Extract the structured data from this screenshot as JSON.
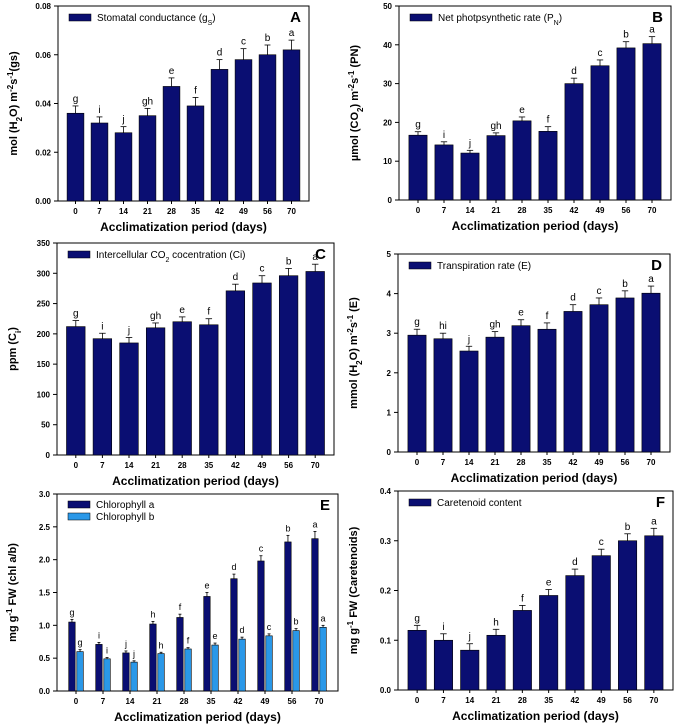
{
  "chart_data": [
    {
      "type": "bar",
      "panel": "A",
      "legend": "Stomatal conductance (gs)",
      "legend_main": "Stomatal conductance (g",
      "legend_sub": "S",
      "legend_tail": ")",
      "ylabel": "mol (H2O) m-2s-1(gs)",
      "ylabel_parts": [
        [
          "mol (H",
          "n"
        ],
        [
          "2",
          "sub"
        ],
        [
          "O) m",
          "n"
        ],
        [
          "-2",
          "sup"
        ],
        [
          "s",
          "n"
        ],
        [
          "-1",
          "sup"
        ],
        [
          "(gs)",
          "n"
        ]
      ],
      "xlabel": "Acclimatization period (days)",
      "categories": [
        "0",
        "7",
        "14",
        "21",
        "28",
        "35",
        "42",
        "49",
        "56",
        "70"
      ],
      "ylim": [
        0,
        0.08
      ],
      "yticks": [
        "0.00",
        "0.02",
        "0.04",
        "0.06",
        "0.08"
      ],
      "series": [
        {
          "name": "Stomatal conductance",
          "color": "#0a0e72",
          "values": [
            0.036,
            0.032,
            0.028,
            0.035,
            0.047,
            0.039,
            0.054,
            0.058,
            0.06,
            0.062
          ],
          "errors": [
            0.003,
            0.0025,
            0.0025,
            0.003,
            0.0035,
            0.0035,
            0.004,
            0.0045,
            0.004,
            0.004
          ],
          "letters": [
            "g",
            "i",
            "j",
            "gh",
            "e",
            "f",
            "d",
            "c",
            "b",
            "a"
          ]
        }
      ]
    },
    {
      "type": "bar",
      "panel": "B",
      "legend": "Net photpsynthetic rate (PN)",
      "legend_main": "Net photpsynthetic rate (P",
      "legend_sub": "N",
      "legend_tail": ")",
      "ylabel": "µmol (CO2) m-2s-1 (PN)",
      "ylabel_parts": [
        [
          "µmol (CO",
          "n"
        ],
        [
          "2",
          "sub"
        ],
        [
          ") m",
          "n"
        ],
        [
          "-2",
          "sup"
        ],
        [
          "s",
          "n"
        ],
        [
          "-1",
          "sup"
        ],
        [
          " (PN)",
          "n"
        ]
      ],
      "xlabel": "Acclimatization period (days)",
      "categories": [
        "0",
        "7",
        "14",
        "21",
        "28",
        "35",
        "42",
        "49",
        "56",
        "70"
      ],
      "ylim": [
        0,
        50
      ],
      "yticks": [
        "0",
        "10",
        "20",
        "30",
        "40",
        "50"
      ],
      "series": [
        {
          "name": "Net photosynthetic rate",
          "color": "#0a0e72",
          "values": [
            16.7,
            14.2,
            12.1,
            16.6,
            20.4,
            17.7,
            30.0,
            34.6,
            39.2,
            40.3
          ],
          "errors": [
            0.9,
            0.8,
            0.7,
            0.7,
            1.0,
            1.2,
            1.4,
            1.5,
            1.6,
            1.8
          ],
          "letters": [
            "g",
            "i",
            "j",
            "gh",
            "e",
            "f",
            "d",
            "c",
            "b",
            "a"
          ]
        }
      ]
    },
    {
      "type": "bar",
      "panel": "C",
      "legend": "Intercellular CO2 cocentration (Ci)",
      "legend_main": "Intercellular CO",
      "legend_sub": "2",
      "legend_tail": " cocentration (Ci)",
      "ylabel": "ppm (Ci)",
      "ylabel_parts": [
        [
          "ppm (C",
          "n"
        ],
        [
          "i",
          "sub"
        ],
        [
          ")",
          "n"
        ]
      ],
      "xlabel": "Acclimatization period (days)",
      "categories": [
        "0",
        "7",
        "14",
        "21",
        "28",
        "35",
        "42",
        "49",
        "56",
        "70"
      ],
      "ylim": [
        0,
        350
      ],
      "yticks": [
        "0",
        "50",
        "100",
        "150",
        "200",
        "250",
        "300",
        "350"
      ],
      "series": [
        {
          "name": "Intercellular CO2",
          "color": "#0a0e72",
          "values": [
            212,
            192,
            185,
            210,
            220,
            215,
            271,
            284,
            296,
            303
          ],
          "errors": [
            10,
            9,
            9,
            8,
            8,
            10,
            11,
            12,
            12,
            12
          ],
          "letters": [
            "g",
            "i",
            "j",
            "gh",
            "e",
            "f",
            "d",
            "c",
            "b",
            "a"
          ]
        }
      ]
    },
    {
      "type": "bar",
      "panel": "D",
      "legend": "Transpiration rate (E)",
      "legend_main": "Transpiration rate (E)",
      "legend_sub": "",
      "legend_tail": "",
      "ylabel": "mmol (H2O) m-2s-1 (E)",
      "ylabel_parts": [
        [
          "mmol (H",
          "n"
        ],
        [
          "2",
          "sub"
        ],
        [
          "O) m",
          "n"
        ],
        [
          "-2",
          "sup"
        ],
        [
          "s",
          "n"
        ],
        [
          "-1",
          "sup"
        ],
        [
          " (E)",
          "n"
        ]
      ],
      "xlabel": "Acclimatization period (days)",
      "categories": [
        "0",
        "7",
        "14",
        "21",
        "28",
        "35",
        "42",
        "49",
        "56",
        "70"
      ],
      "ylim": [
        0,
        5
      ],
      "yticks": [
        "0",
        "1",
        "2",
        "3",
        "4",
        "5"
      ],
      "series": [
        {
          "name": "Transpiration rate",
          "color": "#0a0e72",
          "values": [
            2.95,
            2.86,
            2.55,
            2.9,
            3.19,
            3.1,
            3.55,
            3.72,
            3.89,
            4.01
          ],
          "errors": [
            0.15,
            0.14,
            0.12,
            0.14,
            0.15,
            0.16,
            0.17,
            0.17,
            0.18,
            0.18
          ],
          "letters": [
            "g",
            "hi",
            "j",
            "gh",
            "e",
            "f",
            "d",
            "c",
            "b",
            "a"
          ]
        }
      ]
    },
    {
      "type": "bar",
      "panel": "E",
      "legend": "",
      "ylabel": "mg g-1 FW (chl a/b)",
      "ylabel_parts": [
        [
          "mg g",
          "n"
        ],
        [
          "-1",
          "sup"
        ],
        [
          " FW (chl a/b)",
          "n"
        ]
      ],
      "xlabel": "Acclimatization period (days)",
      "categories": [
        "0",
        "7",
        "14",
        "21",
        "28",
        "35",
        "42",
        "49",
        "56",
        "70"
      ],
      "ylim": [
        0,
        3.0
      ],
      "yticks": [
        "0.0",
        "0.5",
        "1.0",
        "1.5",
        "2.0",
        "2.5",
        "3.0"
      ],
      "series": [
        {
          "name": "Chlorophyll a",
          "color": "#0a0e72",
          "values": [
            1.05,
            0.71,
            0.58,
            1.02,
            1.12,
            1.44,
            1.71,
            1.98,
            2.27,
            2.32
          ],
          "errors": [
            0.04,
            0.03,
            0.03,
            0.04,
            0.05,
            0.06,
            0.07,
            0.08,
            0.1,
            0.11
          ],
          "letters": [
            "g",
            "i",
            "j",
            "h",
            "f",
            "e",
            "d",
            "c",
            "b",
            "a"
          ]
        },
        {
          "name": "Chlorophyll b",
          "color": "#2a98e8",
          "values": [
            0.6,
            0.49,
            0.44,
            0.57,
            0.64,
            0.7,
            0.79,
            0.84,
            0.92,
            0.97
          ],
          "errors": [
            0.03,
            0.02,
            0.02,
            0.02,
            0.02,
            0.03,
            0.03,
            0.03,
            0.03,
            0.03
          ],
          "letters": [
            "g",
            "i",
            "j",
            "h",
            "f",
            "e",
            "d",
            "c",
            "b",
            "a"
          ]
        }
      ]
    },
    {
      "type": "bar",
      "panel": "F",
      "legend": "Caretenoid content",
      "legend_main": "Caretenoid content",
      "legend_sub": "",
      "legend_tail": "",
      "ylabel": "mg g-1 FW (Caretenoids)",
      "ylabel_parts": [
        [
          "mg g",
          "n"
        ],
        [
          "-1",
          "sup"
        ],
        [
          " FW (Caretenoids)",
          "n"
        ]
      ],
      "xlabel": "Acclimatization period (days)",
      "categories": [
        "0",
        "7",
        "14",
        "21",
        "28",
        "35",
        "42",
        "49",
        "56",
        "70"
      ],
      "ylim": [
        0,
        0.4
      ],
      "yticks": [
        "0.0",
        "0.1",
        "0.2",
        "0.3",
        "0.4"
      ],
      "series": [
        {
          "name": "Caretenoid content",
          "color": "#0a0e72",
          "values": [
            0.12,
            0.1,
            0.08,
            0.11,
            0.16,
            0.19,
            0.23,
            0.27,
            0.3,
            0.31
          ],
          "errors": [
            0.01,
            0.013,
            0.013,
            0.012,
            0.01,
            0.012,
            0.013,
            0.013,
            0.014,
            0.015
          ],
          "letters": [
            "g",
            "i",
            "j",
            "h",
            "f",
            "e",
            "d",
            "c",
            "b",
            "a"
          ]
        }
      ]
    }
  ]
}
